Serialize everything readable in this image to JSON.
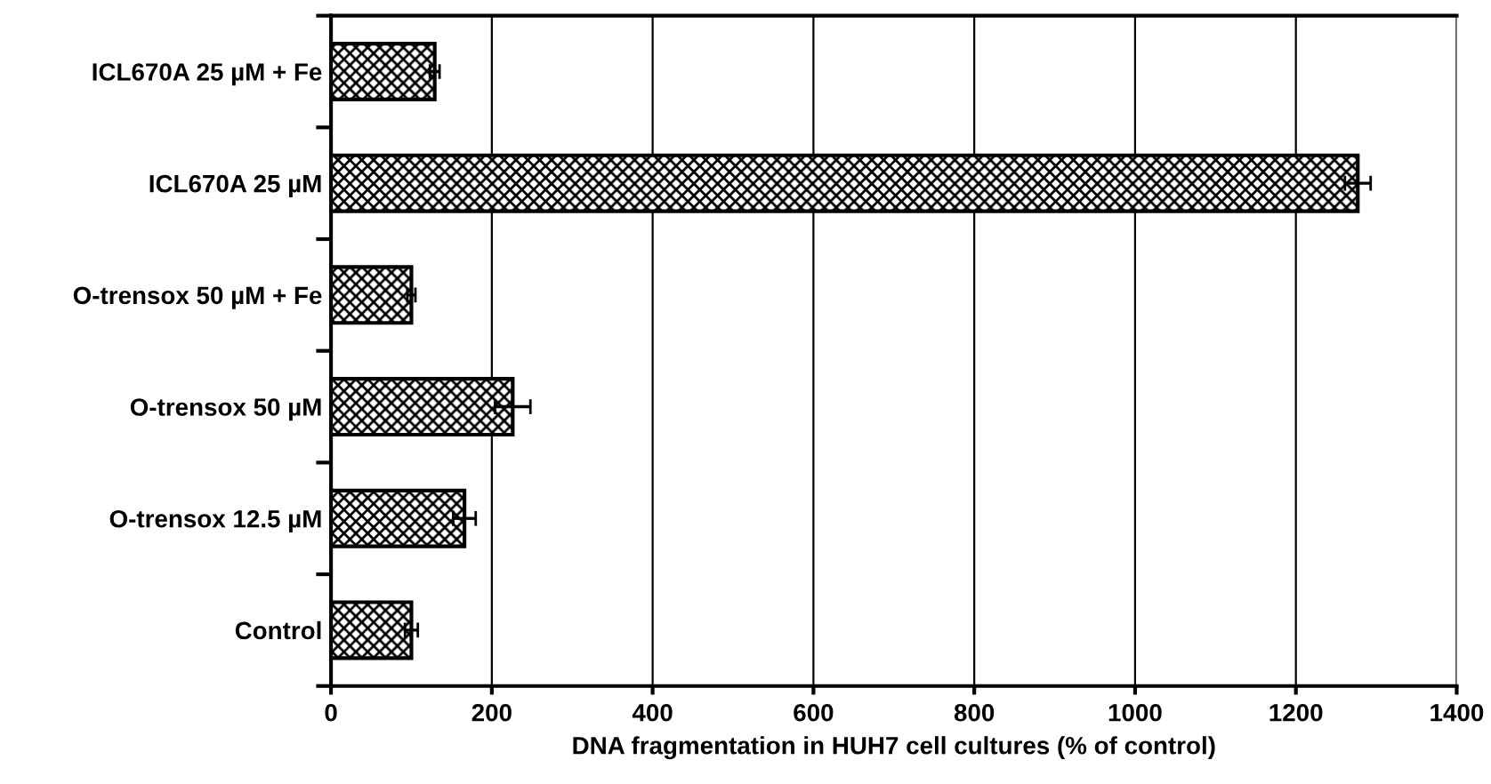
{
  "chart_data": {
    "type": "bar",
    "orientation": "horizontal",
    "xlabel": "DNA fragmentation in HUH7 cell cultures (% of control)",
    "categories": [
      "ICL670A 25 µM + Fe",
      "ICL670A 25 µM",
      "O-trensox 50 µM + Fe",
      "O-trensox 50 µM",
      "O-trensox 12.5 µM",
      "Control"
    ],
    "values": [
      129,
      1277,
      100,
      226,
      166,
      100
    ],
    "errors": [
      6,
      16,
      5,
      22,
      14,
      8
    ],
    "color": "#000000",
    "xlim": [
      0,
      1400
    ],
    "xticks": [
      0,
      200,
      400,
      600,
      800,
      1000,
      1200,
      1400
    ],
    "grid": "x"
  }
}
